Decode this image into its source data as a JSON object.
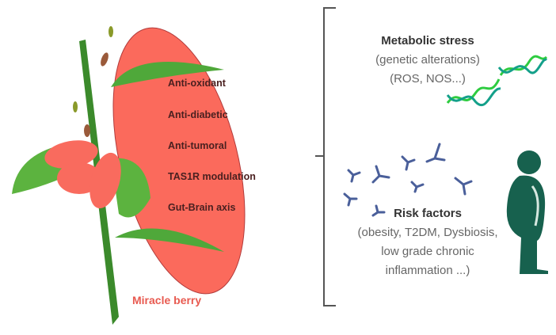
{
  "plant_label": "Miracle berry",
  "properties": [
    "Anti-oxidant",
    "Anti-diabetic",
    "Anti-tumoral",
    "TAS1R modulation",
    "Gut-Brain axis"
  ],
  "metabolic_stress": {
    "title": "Metabolic stress",
    "lines": [
      "(genetic alterations)",
      "(ROS, NOS...)"
    ]
  },
  "risk_factors": {
    "title": "Risk factors",
    "lines": [
      "(obesity, T2DM, Dysbiosis,",
      "low grade chronic",
      "inflammation ...)"
    ]
  },
  "colors": {
    "berry": "#f96b5e",
    "leaf": "#4fa83a",
    "stem": "#3b8a2b",
    "person": "#17614e",
    "dna": "#2ecc40",
    "antibody": "#4a5f9a",
    "bracket": "#555555"
  }
}
